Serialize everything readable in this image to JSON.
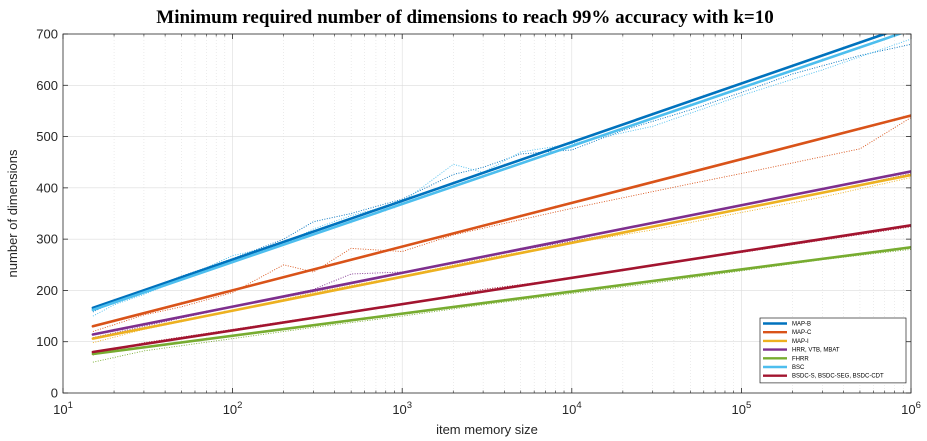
{
  "chart_data": {
    "type": "line",
    "title": "Minimum required number of dimensions to reach 99% accuracy with k=10",
    "xlabel": "item memory size",
    "ylabel": "number of dimensions",
    "xscale": "log",
    "xlim": [
      10,
      1000000
    ],
    "ylim": [
      0,
      700
    ],
    "x_ticks": [
      {
        "value": 10,
        "base": "10",
        "exp": "1"
      },
      {
        "value": 100,
        "base": "10",
        "exp": "2"
      },
      {
        "value": 1000,
        "base": "10",
        "exp": "3"
      },
      {
        "value": 10000,
        "base": "10",
        "exp": "4"
      },
      {
        "value": 100000,
        "base": "10",
        "exp": "5"
      },
      {
        "value": 1000000,
        "base": "10",
        "exp": "6"
      }
    ],
    "y_ticks": [
      0,
      100,
      200,
      300,
      400,
      500,
      600,
      700
    ],
    "grid": true,
    "legend_position": "bottom-right",
    "series": [
      {
        "name": "MAP-B",
        "color": "#0072BD",
        "fit": [
          [
            15,
            166
          ],
          [
            1000000,
            718
          ]
        ],
        "measured": [
          [
            15,
            158
          ],
          [
            20,
            178
          ],
          [
            30,
            200
          ],
          [
            50,
            228
          ],
          [
            100,
            262
          ],
          [
            200,
            300
          ],
          [
            300,
            334
          ],
          [
            500,
            350
          ],
          [
            1000,
            378
          ],
          [
            2000,
            426
          ],
          [
            3000,
            440
          ],
          [
            5000,
            466
          ],
          [
            10000,
            474
          ],
          [
            20000,
            512
          ],
          [
            50000,
            552
          ],
          [
            100000,
            586
          ],
          [
            200000,
            622
          ],
          [
            500000,
            658
          ],
          [
            1000000,
            680
          ]
        ]
      },
      {
        "name": "MAP-C",
        "color": "#D95319",
        "fit": [
          [
            15,
            130
          ],
          [
            1000000,
            541
          ]
        ],
        "measured": [
          [
            15,
            120
          ],
          [
            30,
            152
          ],
          [
            50,
            168
          ],
          [
            100,
            196
          ],
          [
            200,
            250
          ],
          [
            300,
            236
          ],
          [
            500,
            282
          ],
          [
            1000,
            276
          ],
          [
            2000,
            308
          ],
          [
            5000,
            338
          ],
          [
            10000,
            360
          ],
          [
            50000,
            408
          ],
          [
            100000,
            428
          ],
          [
            500000,
            476
          ],
          [
            1000000,
            537
          ]
        ]
      },
      {
        "name": "MAP-I",
        "color": "#EDB120",
        "fit": [
          [
            15,
            106
          ],
          [
            1000000,
            425
          ]
        ],
        "measured": [
          [
            15,
            98
          ],
          [
            30,
            124
          ],
          [
            100,
            160
          ],
          [
            300,
            196
          ],
          [
            1000,
            228
          ],
          [
            3000,
            262
          ],
          [
            10000,
            292
          ],
          [
            30000,
            318
          ],
          [
            100000,
            352
          ],
          [
            300000,
            382
          ],
          [
            1000000,
            420
          ]
        ]
      },
      {
        "name": "HRR, VTB, MBAT",
        "color": "#7E2F8E",
        "fit": [
          [
            15,
            114
          ],
          [
            1000000,
            432
          ]
        ],
        "measured": [
          [
            15,
            108
          ],
          [
            30,
            130
          ],
          [
            100,
            168
          ],
          [
            300,
            202
          ],
          [
            500,
            232
          ],
          [
            1000,
            236
          ],
          [
            3000,
            266
          ],
          [
            10000,
            296
          ],
          [
            30000,
            324
          ],
          [
            100000,
            358
          ],
          [
            300000,
            390
          ],
          [
            1000000,
            428
          ]
        ]
      },
      {
        "name": "FHRR",
        "color": "#77AC30",
        "fit": [
          [
            15,
            76
          ],
          [
            1000000,
            284
          ]
        ],
        "measured": [
          [
            15,
            60
          ],
          [
            30,
            82
          ],
          [
            100,
            106
          ],
          [
            300,
            128
          ],
          [
            1000,
            150
          ],
          [
            3000,
            172
          ],
          [
            10000,
            194
          ],
          [
            30000,
            214
          ],
          [
            100000,
            238
          ],
          [
            300000,
            260
          ],
          [
            1000000,
            280
          ]
        ]
      },
      {
        "name": "BSC",
        "color": "#4DBEEE",
        "fit": [
          [
            15,
            162
          ],
          [
            1000000,
            708
          ]
        ],
        "measured": [
          [
            15,
            150
          ],
          [
            20,
            172
          ],
          [
            30,
            192
          ],
          [
            50,
            222
          ],
          [
            100,
            268
          ],
          [
            200,
            290
          ],
          [
            300,
            320
          ],
          [
            500,
            346
          ],
          [
            1000,
            372
          ],
          [
            2000,
            446
          ],
          [
            3000,
            430
          ],
          [
            5000,
            470
          ],
          [
            10000,
            486
          ],
          [
            30000,
            520
          ],
          [
            100000,
            580
          ],
          [
            300000,
            630
          ],
          [
            1000000,
            690
          ]
        ]
      },
      {
        "name": "BSDC-S, BSDC-SEG, BSDC-CDT",
        "color": "#A2142F",
        "fit": [
          [
            15,
            80
          ],
          [
            1000000,
            327
          ]
        ],
        "measured": [
          [
            15,
            74
          ],
          [
            30,
            98
          ],
          [
            100,
            124
          ],
          [
            300,
            148
          ],
          [
            1000,
            172
          ],
          [
            3000,
            202
          ],
          [
            10000,
            224
          ],
          [
            30000,
            250
          ],
          [
            100000,
            274
          ],
          [
            300000,
            298
          ],
          [
            1000000,
            324
          ]
        ]
      }
    ]
  }
}
